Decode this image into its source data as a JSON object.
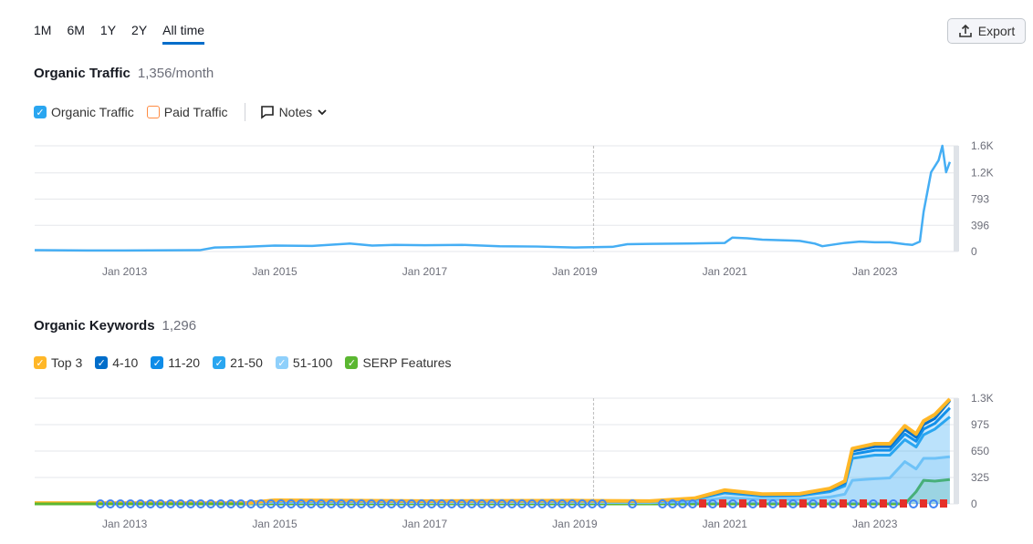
{
  "tabs": [
    "1M",
    "6M",
    "1Y",
    "2Y",
    "All time"
  ],
  "export_label": "Export",
  "traffic": {
    "title": "Organic Traffic",
    "value": "1,356/month",
    "legend": [
      {
        "label": "Organic Traffic",
        "color": "#2aa6f0",
        "checked": true
      },
      {
        "label": "Paid Traffic",
        "color": "#ff8c43",
        "checked": false
      }
    ],
    "notes_label": "Notes"
  },
  "keywords": {
    "title": "Organic Keywords",
    "value": "1,296",
    "legend": [
      {
        "label": "Top 3",
        "color": "#ffb728"
      },
      {
        "label": "4-10",
        "color": "#006dca"
      },
      {
        "label": "11-20",
        "color": "#0e8ce8"
      },
      {
        "label": "21-50",
        "color": "#2aa6f0"
      },
      {
        "label": "51-100",
        "color": "#8fd0fb"
      },
      {
        "label": "SERP Features",
        "color": "#5bb731"
      }
    ]
  },
  "chart_data": [
    {
      "type": "line",
      "title": "Organic Traffic",
      "xlim": [
        2011.8,
        2024.05
      ],
      "ylim": [
        0,
        1600
      ],
      "yticks": [
        "0",
        "396",
        "793",
        "1.2K",
        "1.6K"
      ],
      "ytick_values": [
        0,
        396,
        793,
        1190,
        1600
      ],
      "xticks": [
        "Jan 2013",
        "Jan 2015",
        "Jan 2017",
        "Jan 2019",
        "Jan 2021",
        "Jan 2023"
      ],
      "xtick_values": [
        2013,
        2015,
        2017,
        2019,
        2021,
        2023
      ],
      "marker_year": 2019.25,
      "series": [
        {
          "name": "Organic Traffic",
          "color": "#45aef4",
          "x": [
            2011.8,
            2012.5,
            2013,
            2014,
            2014.2,
            2014.6,
            2015,
            2015.5,
            2016,
            2016.3,
            2016.6,
            2017,
            2017.5,
            2018,
            2018.5,
            2019,
            2019.5,
            2019.7,
            2020,
            2020.5,
            2021,
            2021.1,
            2021.3,
            2021.5,
            2021.9,
            2022,
            2022.2,
            2022.3,
            2022.6,
            2022.8,
            2023,
            2023.2,
            2023.4,
            2023.5,
            2023.6,
            2023.65,
            2023.75,
            2023.85,
            2023.9,
            2023.95,
            2024
          ],
          "y": [
            20,
            15,
            15,
            20,
            60,
            70,
            90,
            85,
            120,
            90,
            100,
            95,
            100,
            80,
            75,
            60,
            70,
            110,
            115,
            120,
            130,
            210,
            200,
            180,
            165,
            160,
            120,
            80,
            130,
            150,
            140,
            140,
            110,
            100,
            150,
            600,
            1200,
            1380,
            1600,
            1200,
            1356
          ]
        }
      ]
    },
    {
      "type": "area",
      "title": "Organic Keywords",
      "xlim": [
        2011.8,
        2024.05
      ],
      "ylim": [
        0,
        1300
      ],
      "yticks": [
        "0",
        "325",
        "650",
        "975",
        "1.3K"
      ],
      "ytick_values": [
        0,
        325,
        650,
        975,
        1300
      ],
      "xticks": [
        "Jan 2013",
        "Jan 2015",
        "Jan 2017",
        "Jan 2019",
        "Jan 2021",
        "Jan 2023"
      ],
      "xtick_values": [
        2013,
        2015,
        2017,
        2019,
        2021,
        2023
      ],
      "marker_year": 2019.25,
      "x": [
        2011.8,
        2014.6,
        2015,
        2017,
        2019,
        2020,
        2020.6,
        2021,
        2021.5,
        2022,
        2022.4,
        2022.6,
        2022.7,
        2023,
        2023.2,
        2023.4,
        2023.55,
        2023.65,
        2023.8,
        2024
      ],
      "series": [
        {
          "name": "Top 3",
          "color": "#ffb728",
          "y": [
            10,
            10,
            45,
            35,
            40,
            35,
            70,
            170,
            120,
            125,
            190,
            280,
            680,
            740,
            740,
            960,
            860,
            1020,
            1100,
            1290
          ]
        },
        {
          "name": "4-10",
          "color": "#006dca",
          "y": [
            10,
            10,
            43,
            33,
            38,
            33,
            66,
            162,
            114,
            118,
            180,
            266,
            650,
            705,
            705,
            915,
            820,
            975,
            1050,
            1270
          ]
        },
        {
          "name": "11-20",
          "color": "#0e8ce8",
          "y": [
            9,
            9,
            40,
            31,
            36,
            31,
            62,
            150,
            106,
            110,
            168,
            248,
            610,
            660,
            660,
            860,
            770,
            920,
            990,
            1180
          ]
        },
        {
          "name": "21-50",
          "color": "#2aa6f0",
          "y": [
            8,
            8,
            36,
            28,
            32,
            28,
            55,
            135,
            95,
            100,
            150,
            222,
            560,
            600,
            600,
            790,
            700,
            850,
            920,
            1070
          ]
        },
        {
          "name": "51-100",
          "color": "#8fd0fb",
          "y": [
            5,
            5,
            20,
            15,
            18,
            15,
            30,
            75,
            55,
            55,
            85,
            120,
            290,
            310,
            320,
            520,
            430,
            560,
            560,
            580
          ]
        },
        {
          "name": "SERP Features",
          "color": "#5bb731",
          "y": [
            0,
            0,
            0,
            0,
            0,
            0,
            0,
            0,
            0,
            0,
            0,
            0,
            0,
            0,
            0,
            0,
            150,
            290,
            280,
            300
          ]
        }
      ]
    }
  ]
}
